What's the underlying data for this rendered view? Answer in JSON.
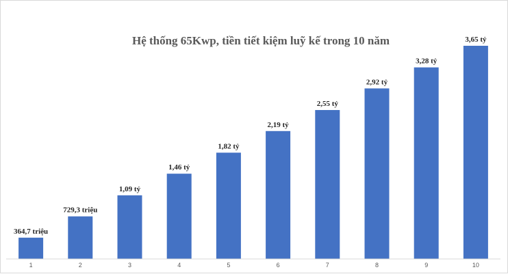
{
  "chart_data": {
    "type": "bar",
    "title": "Hệ thống 65Kwp, tiền tiết kiệm luỹ kế trong 10 năm",
    "xlabel": "",
    "ylabel": "",
    "categories": [
      "1",
      "2",
      "3",
      "4",
      "5",
      "6",
      "7",
      "8",
      "9",
      "10"
    ],
    "values": [
      364.7,
      729.3,
      1090,
      1460,
      1820,
      2190,
      2550,
      2920,
      3280,
      3650
    ],
    "value_unit": "triệu",
    "data_labels": [
      "364,7 triệu",
      "729,3 triệu",
      "1,09 tỷ",
      "1,46 tỷ",
      "1,82 tỷ",
      "2,19 tỷ",
      "2,55 tỷ",
      "2,92 tỷ",
      "3,28 tỷ",
      "3,65 tỷ"
    ],
    "ylim": [
      0,
      3650
    ],
    "grid": false,
    "legend": "none",
    "colors": {
      "bar": "#4472C4",
      "axis": "#d9d9d9"
    }
  }
}
